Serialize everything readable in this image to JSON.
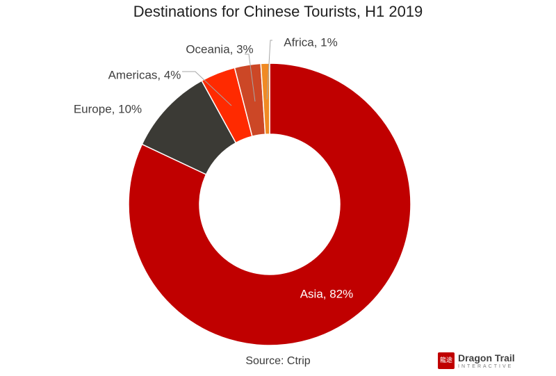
{
  "chart_data": {
    "type": "pie",
    "donut": true,
    "title": "Destinations for Chinese Tourists, H1 2019",
    "source": "Source: Ctrip",
    "slices": [
      {
        "name": "Asia",
        "value": 82,
        "label": "Asia, 82%",
        "color": "#c00000"
      },
      {
        "name": "Europe",
        "value": 10,
        "label": "Europe, 10%",
        "color": "#3b3a35"
      },
      {
        "name": "Americas",
        "value": 4,
        "label": "Americas, 4%",
        "color": "#ff2a00"
      },
      {
        "name": "Oceania",
        "value": 3,
        "label": "Oceania, 3%",
        "color": "#cc4726"
      },
      {
        "name": "Africa",
        "value": 1,
        "label": "Africa, 1%",
        "color": "#f08a24"
      }
    ],
    "start": "top",
    "direction": "clockwise"
  },
  "brand": {
    "name": "Dragon Trail",
    "subtitle": "INTERACTIVE",
    "seal": "龍途"
  }
}
